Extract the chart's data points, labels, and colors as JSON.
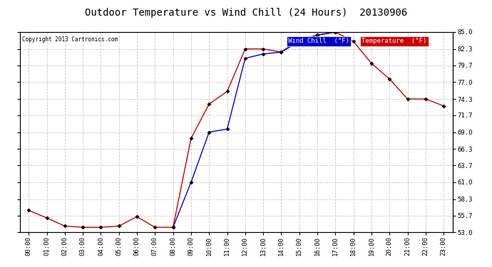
{
  "title": "Outdoor Temperature vs Wind Chill (24 Hours)  20130906",
  "copyright": "Copyright 2013 Cartronics.com",
  "background_color": "#ffffff",
  "plot_bg_color": "#ffffff",
  "grid_color": "#c8c8c8",
  "hours": [
    "00:00",
    "01:00",
    "02:00",
    "03:00",
    "04:00",
    "05:00",
    "06:00",
    "07:00",
    "08:00",
    "09:00",
    "10:00",
    "11:00",
    "12:00",
    "13:00",
    "14:00",
    "15:00",
    "16:00",
    "17:00",
    "18:00",
    "19:00",
    "20:00",
    "21:00",
    "22:00",
    "23:00"
  ],
  "temperature": [
    56.5,
    55.3,
    54.0,
    53.8,
    53.8,
    54.0,
    55.5,
    53.8,
    53.8,
    68.0,
    73.5,
    75.5,
    82.3,
    82.3,
    81.8,
    83.8,
    84.5,
    85.0,
    83.5,
    80.0,
    77.5,
    74.3,
    74.3,
    73.2
  ],
  "wind_chill": [
    null,
    null,
    null,
    null,
    null,
    null,
    null,
    null,
    53.8,
    61.0,
    69.0,
    69.5,
    80.8,
    81.5,
    81.8,
    83.5,
    84.5,
    85.0,
    null,
    null,
    null,
    null,
    null,
    null
  ],
  "temp_color": "#cc0000",
  "wind_chill_color": "#0000cc",
  "ylim_min": 53.0,
  "ylim_max": 85.0,
  "yticks": [
    53.0,
    55.7,
    58.3,
    61.0,
    63.7,
    66.3,
    69.0,
    71.7,
    74.3,
    77.0,
    79.7,
    82.3,
    85.0
  ],
  "legend_wind_chill_bg": "#0000cc",
  "legend_temp_bg": "#cc0000",
  "legend_text_color": "#ffffff"
}
